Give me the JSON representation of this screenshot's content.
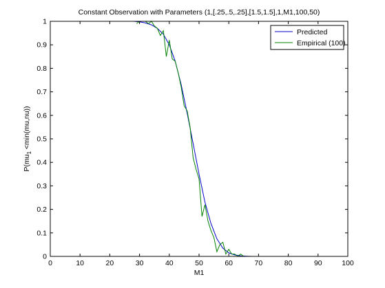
{
  "chart_data": {
    "type": "line",
    "title": "Constant Observation with Parameters (1,[.25,.5,.25],[1.5,1.5],1,M1,100,50)",
    "xlabel": "M1",
    "ylabel_parts": {
      "main": "P(mu",
      "sub": "1",
      "rest": " <min(mu,nu))"
    },
    "xlim": [
      0,
      100
    ],
    "ylim": [
      0,
      1
    ],
    "xticks": [
      0,
      10,
      20,
      30,
      40,
      50,
      60,
      70,
      80,
      90,
      100
    ],
    "yticks": [
      0,
      0.1,
      0.2,
      0.3,
      0.4,
      0.5,
      0.6,
      0.7,
      0.8,
      0.9,
      1
    ],
    "ytick_labels": [
      "0",
      "0.1",
      "0.2",
      "0.3",
      "0.4",
      "0.5",
      "0.6",
      "0.7",
      "0.8",
      "0.9",
      "1"
    ],
    "grid": false,
    "legend_position": "top-right",
    "series": [
      {
        "name": "Predicted",
        "color": "#0000cc",
        "x": [
          0,
          28,
          30,
          32,
          34,
          36,
          38,
          40,
          42,
          44,
          46,
          48,
          50,
          52,
          54,
          56,
          58,
          60,
          62,
          64,
          66,
          68,
          70,
          100
        ],
        "y": [
          1,
          1,
          0.998,
          0.993,
          0.985,
          0.97,
          0.945,
          0.9,
          0.83,
          0.73,
          0.61,
          0.48,
          0.35,
          0.23,
          0.14,
          0.075,
          0.035,
          0.015,
          0.006,
          0.002,
          0.001,
          0,
          0,
          0
        ]
      },
      {
        "name": "Empirical (100)",
        "color": "#008000",
        "x": [
          29,
          30,
          31,
          32,
          33,
          34,
          35,
          36,
          37,
          38,
          39,
          40,
          41,
          42,
          43,
          44,
          45,
          46,
          47,
          48,
          49,
          50,
          51,
          52,
          53,
          54,
          55,
          56,
          57,
          58,
          59,
          60,
          61,
          62,
          63,
          64,
          65,
          66,
          67,
          68,
          100
        ],
        "y": [
          0.99,
          1,
          1,
          1,
          0.99,
          1,
          0.98,
          0.97,
          0.94,
          0.96,
          0.85,
          0.92,
          0.84,
          0.83,
          0.78,
          0.72,
          0.64,
          0.62,
          0.55,
          0.42,
          0.37,
          0.33,
          0.17,
          0.22,
          0.15,
          0.11,
          0.08,
          0.02,
          0.05,
          0.06,
          0.01,
          0.03,
          0.01,
          0.01,
          0,
          0.01,
          0,
          0,
          0,
          0,
          0
        ]
      }
    ]
  }
}
